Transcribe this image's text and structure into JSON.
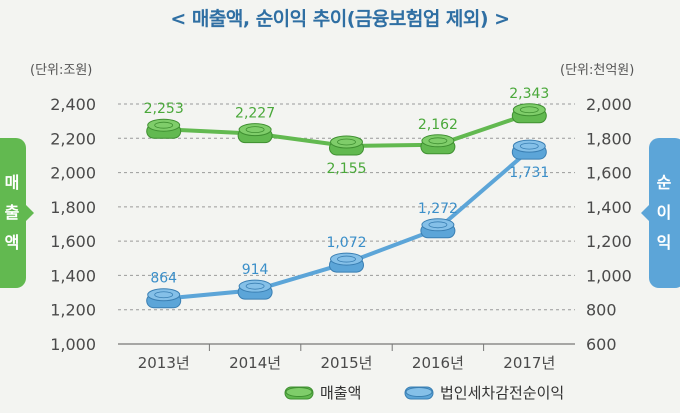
{
  "title": "< 매출액, 순이익 추이(금융보험업 제외) >",
  "units": {
    "left": "(단위:조원)",
    "right": "(단위:천억원)"
  },
  "side_labels": {
    "left": [
      "매",
      "출",
      "액"
    ],
    "right": [
      "순",
      "이",
      "익"
    ]
  },
  "legend": {
    "revenue": "매출액",
    "net_income": "법인세차감전순이익"
  },
  "colors": {
    "revenue": "#62b950",
    "net_income": "#5ca5d8",
    "revenue_text": "#4aa83a",
    "net_income_text": "#3b8fc9"
  },
  "chart_data": {
    "type": "line",
    "categories": [
      "2013년",
      "2014년",
      "2015년",
      "2016년",
      "2017년"
    ],
    "series": [
      {
        "name": "매출액",
        "axis": "left",
        "values": [
          2253,
          2227,
          2155,
          2162,
          2343
        ],
        "labels": [
          "2,253",
          "2,227",
          "2,155",
          "2,162",
          "2,343"
        ]
      },
      {
        "name": "법인세차감전순이익",
        "axis": "right",
        "values": [
          864,
          914,
          1072,
          1272,
          1731
        ],
        "labels": [
          "864",
          "914",
          "1,072",
          "1,272",
          "1,731"
        ]
      }
    ],
    "ylim_left": [
      1000,
      2400
    ],
    "ylim_right": [
      600,
      2000
    ],
    "yticks_left": [
      "2,400",
      "2,200",
      "2,000",
      "1,800",
      "1,600",
      "1,400",
      "1,200",
      "1,000"
    ],
    "yticks_right": [
      "2,000",
      "1,800",
      "1,600",
      "1,400",
      "1,200",
      "1,000",
      "800",
      "600"
    ],
    "grid": true
  }
}
